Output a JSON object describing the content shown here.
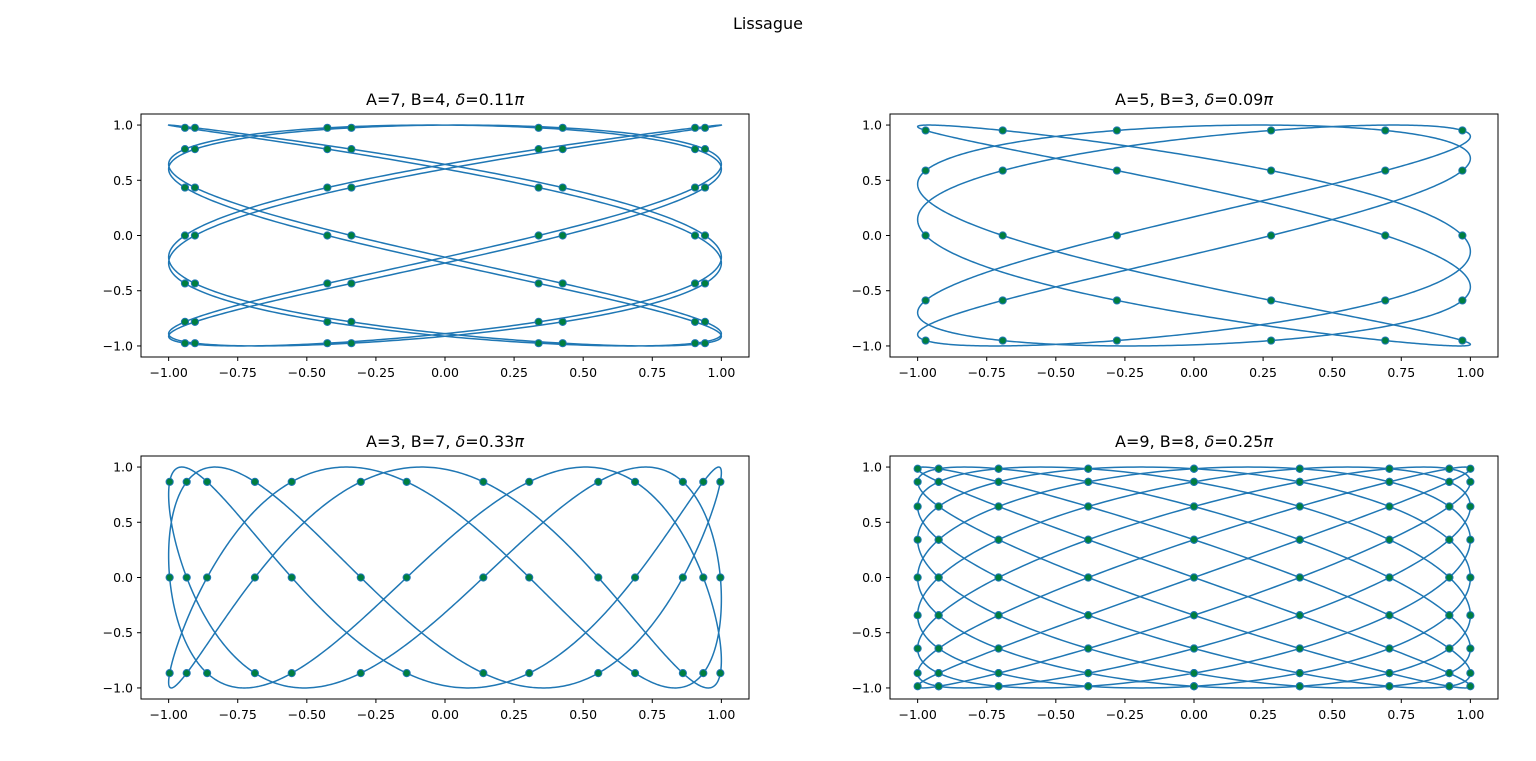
{
  "figure_title": "Lissague",
  "colors": {
    "curve": "#1f77b4",
    "marker": "#007f3f",
    "marker_edge": "#1f77b4",
    "axes": "#000000",
    "background": "#ffffff"
  },
  "chart_data": [
    {
      "type": "line",
      "title_text": "A=7, B=4, ",
      "title_delta": "δ",
      "title_value": "=0.11",
      "title_pi": "π",
      "A": 7,
      "B": 4,
      "delta_over_pi": 0.11,
      "xlim": [
        -1.1,
        1.1
      ],
      "ylim": [
        -1.1,
        1.1
      ],
      "xticks": [
        -1.0,
        -0.75,
        -0.5,
        -0.25,
        0.0,
        0.25,
        0.5,
        0.75,
        1.0
      ],
      "xtick_labels": [
        "−1.00",
        "−0.75",
        "−0.50",
        "−0.25",
        "0.00",
        "0.25",
        "0.50",
        "0.75",
        "1.00"
      ],
      "yticks": [
        -1.0,
        -0.5,
        0.0,
        0.5,
        1.0
      ],
      "ytick_labels": [
        "−1.0",
        "−0.5",
        "0.0",
        "0.5",
        "1.0"
      ],
      "grid": false,
      "markers": true
    },
    {
      "type": "line",
      "title_text": "A=5, B=3, ",
      "title_delta": "δ",
      "title_value": "=0.09",
      "title_pi": "π",
      "A": 5,
      "B": 3,
      "delta_over_pi": 0.09,
      "xlim": [
        -1.1,
        1.1
      ],
      "ylim": [
        -1.1,
        1.1
      ],
      "xticks": [
        -1.0,
        -0.75,
        -0.5,
        -0.25,
        0.0,
        0.25,
        0.5,
        0.75,
        1.0
      ],
      "xtick_labels": [
        "−1.00",
        "−0.75",
        "−0.50",
        "−0.25",
        "0.00",
        "0.25",
        "0.50",
        "0.75",
        "1.00"
      ],
      "yticks": [
        -1.0,
        -0.5,
        0.0,
        0.5,
        1.0
      ],
      "ytick_labels": [
        "−1.0",
        "−0.5",
        "0.0",
        "0.5",
        "1.0"
      ],
      "grid": false,
      "markers": true
    },
    {
      "type": "line",
      "title_text": "A=3, B=7, ",
      "title_delta": "δ",
      "title_value": "=0.33",
      "title_pi": "π",
      "A": 3,
      "B": 7,
      "delta_over_pi": 0.33,
      "xlim": [
        -1.1,
        1.1
      ],
      "ylim": [
        -1.1,
        1.1
      ],
      "xticks": [
        -1.0,
        -0.75,
        -0.5,
        -0.25,
        0.0,
        0.25,
        0.5,
        0.75,
        1.0
      ],
      "xtick_labels": [
        "−1.00",
        "−0.75",
        "−0.50",
        "−0.25",
        "0.00",
        "0.25",
        "0.50",
        "0.75",
        "1.00"
      ],
      "yticks": [
        -1.0,
        -0.5,
        0.0,
        0.5,
        1.0
      ],
      "ytick_labels": [
        "−1.0",
        "−0.5",
        "0.0",
        "0.5",
        "1.0"
      ],
      "grid": false,
      "markers": true
    },
    {
      "type": "line",
      "title_text": "A=9, B=8, ",
      "title_delta": "δ",
      "title_value": "=0.25",
      "title_pi": "π",
      "A": 9,
      "B": 8,
      "delta_over_pi": 0.25,
      "xlim": [
        -1.1,
        1.1
      ],
      "ylim": [
        -1.1,
        1.1
      ],
      "xticks": [
        -1.0,
        -0.75,
        -0.5,
        -0.25,
        0.0,
        0.25,
        0.5,
        0.75,
        1.0
      ],
      "xtick_labels": [
        "−1.00",
        "−0.75",
        "−0.50",
        "−0.25",
        "0.00",
        "0.25",
        "0.50",
        "0.75",
        "1.00"
      ],
      "yticks": [
        -1.0,
        -0.5,
        0.0,
        0.5,
        1.0
      ],
      "ytick_labels": [
        "−1.0",
        "−0.5",
        "0.0",
        "0.5",
        "1.0"
      ],
      "grid": false,
      "markers": true
    }
  ]
}
